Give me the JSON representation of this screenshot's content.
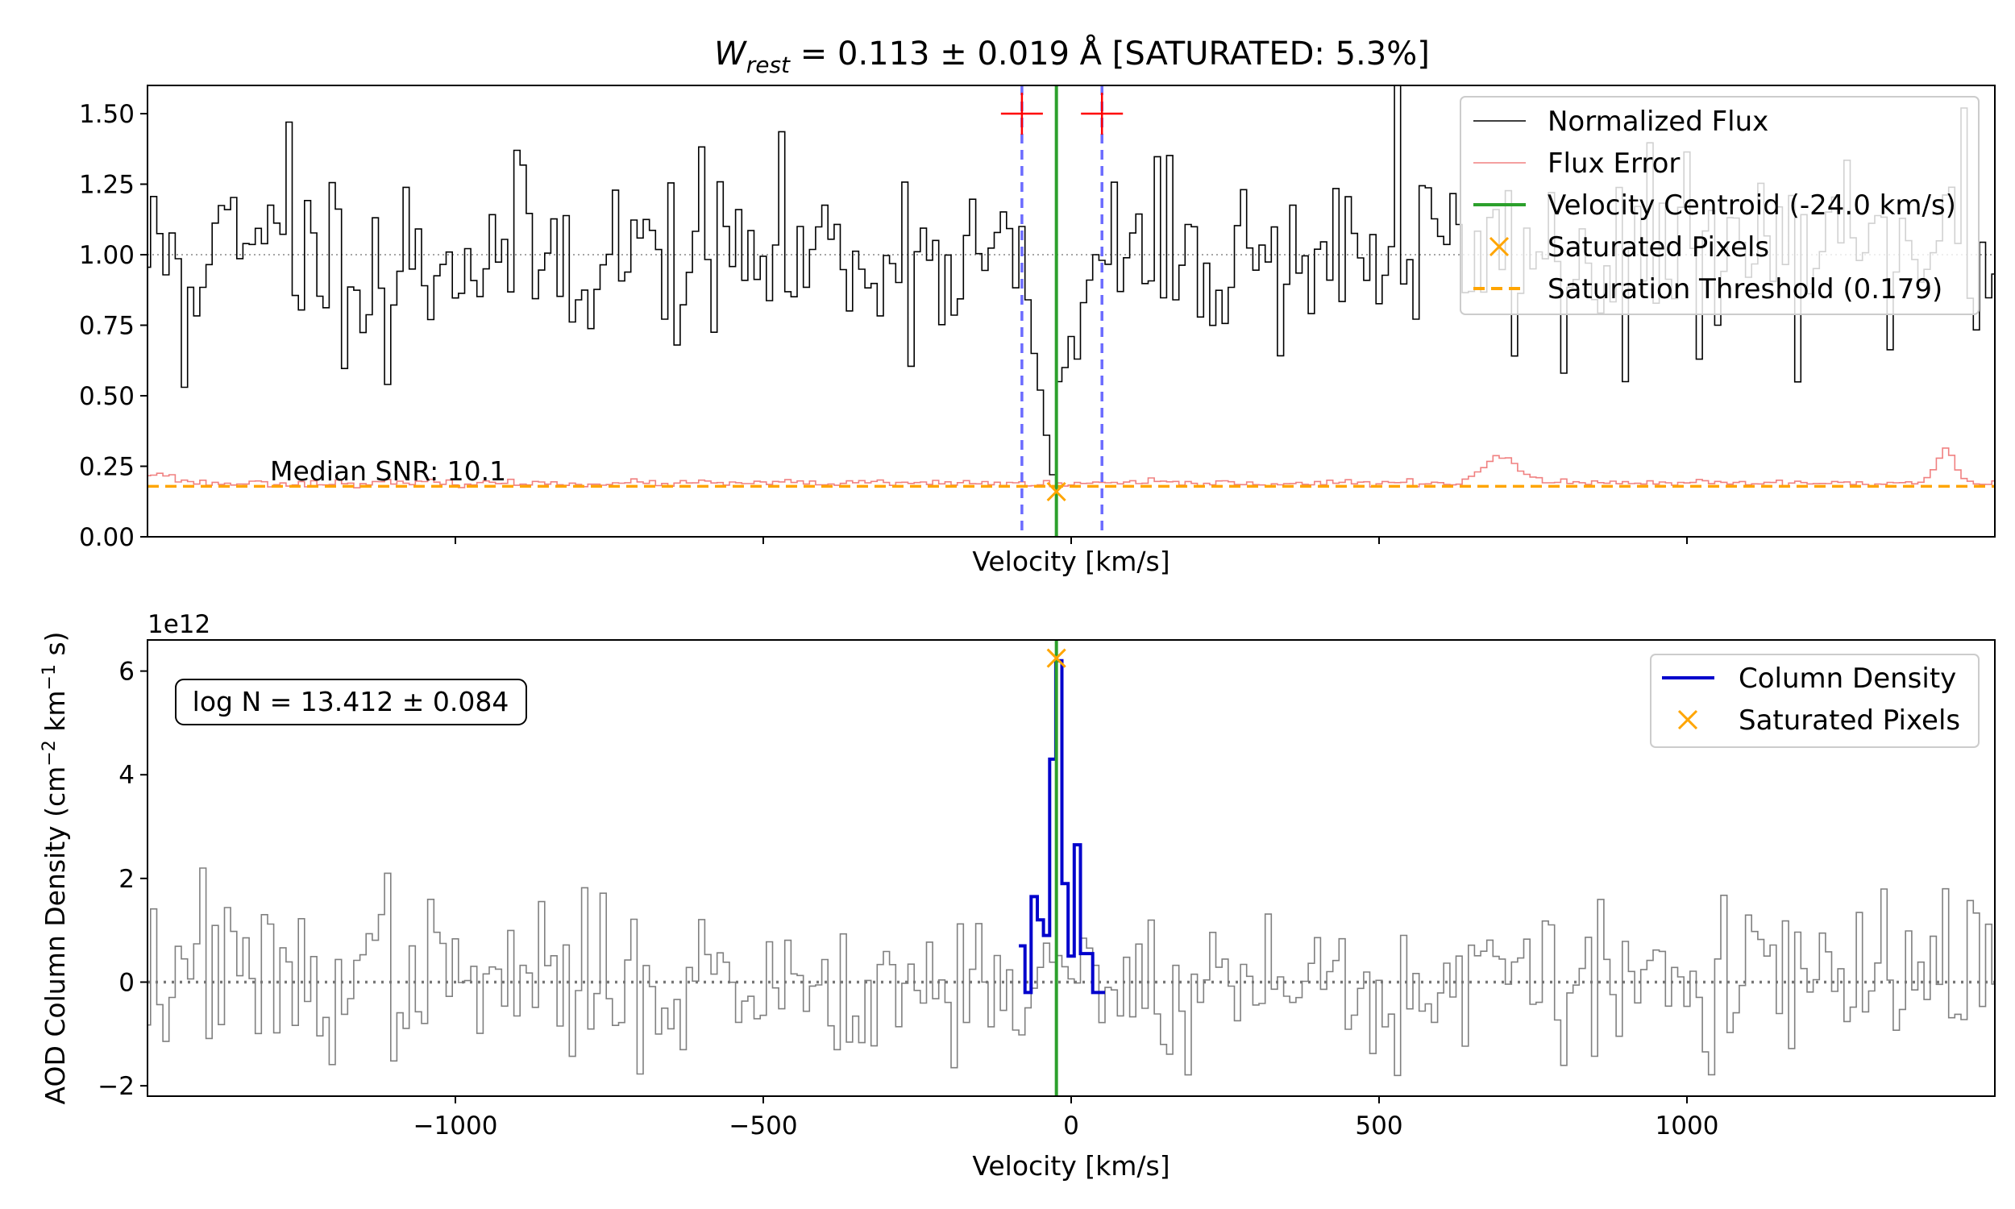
{
  "chart_data": [
    {
      "type": "line",
      "title": "W_rest = 0.113 ± 0.019 Å [SATURATED: 5.3%]",
      "title_parts": {
        "symbol": "W",
        "subscript": "rest",
        "rest": " = 0.113 ± 0.019 Å [SATURATED: 5.3%]"
      },
      "xlabel": "Velocity [km/s]",
      "ylabel": "",
      "xlim": [
        -1500,
        1500
      ],
      "ylim": [
        0,
        1.6
      ],
      "yticks": [
        0.0,
        0.25,
        0.5,
        0.75,
        1.0,
        1.25,
        1.5
      ],
      "ytick_labels": [
        "0.00",
        "0.25",
        "0.50",
        "0.75",
        "1.00",
        "1.25",
        "1.50"
      ],
      "xticks": [
        -1000,
        -500,
        0,
        500,
        1000
      ],
      "xtick_labels_visible": false,
      "continuum_level": 1.0,
      "zero_level": 0.0,
      "velocity_step": 10,
      "annotation": "Median SNR: 10.1",
      "annotation_position": {
        "x": -1300,
        "y": 0.21
      },
      "integration_limits": [
        -80,
        50
      ],
      "limit_markers_y": 1.5,
      "centroid": -24.0,
      "saturated_pixels": [
        {
          "x": -24,
          "y": 0.16
        }
      ],
      "saturation_threshold": 0.179,
      "legend_position": "upper right",
      "legend": [
        "Normalized Flux",
        "Flux Error",
        "Velocity Centroid (-24.0 km/s)",
        "Saturated Pixels",
        "Saturation Threshold (0.179)"
      ],
      "colors": {
        "flux": "#000000",
        "error": "#f08080",
        "centroid": "#2ca02c",
        "limits": "#6b6bff",
        "limit_markers": "#ff0000",
        "saturated": "#ffa500",
        "threshold": "#ffa500",
        "continuum": "#888888"
      },
      "series": [
        {
          "name": "Normalized Flux",
          "profile": "noise",
          "mean": 1.0,
          "sigma": 0.16,
          "seed": 11,
          "min": 0.5,
          "max": 1.6
        },
        {
          "name": "Flux Error",
          "profile": "noise",
          "mean": 0.19,
          "sigma": 0.006,
          "seed": 23,
          "bumps": [
            {
              "x": -1490,
              "width": 30,
              "amp": 0.035
            },
            {
              "x": 700,
              "width": 30,
              "amp": 0.09
            },
            {
              "x": 1420,
              "width": 15,
              "amp": 0.12
            },
            {
              "x": -20,
              "width": 20,
              "amp": -0.01
            }
          ]
        }
      ],
      "absorption_values": [
        {
          "x": -70,
          "y": 0.84
        },
        {
          "x": -60,
          "y": 0.65
        },
        {
          "x": -50,
          "y": 0.52
        },
        {
          "x": -40,
          "y": 0.36
        },
        {
          "x": -30,
          "y": 0.22
        },
        {
          "x": -20,
          "y": 0.55
        },
        {
          "x": -10,
          "y": 0.6
        },
        {
          "x": 0,
          "y": 0.71
        },
        {
          "x": 10,
          "y": 0.63
        },
        {
          "x": 20,
          "y": 0.83
        },
        {
          "x": 30,
          "y": 0.91
        },
        {
          "x": 40,
          "y": 1.0
        },
        {
          "x": 50,
          "y": 0.98
        }
      ],
      "spikes": [
        {
          "x": -1440,
          "y": 0.53
        },
        {
          "x": -1110,
          "y": 0.54
        },
        {
          "x": -1270,
          "y": 1.47
        },
        {
          "x": 530,
          "y": 1.63
        },
        {
          "x": 1450,
          "y": 1.52
        },
        {
          "x": 900,
          "y": 0.55
        },
        {
          "x": 800,
          "y": 0.58
        }
      ]
    },
    {
      "type": "line",
      "title": "",
      "xlabel": "Velocity [km/s]",
      "ylabel": "AOD Column Density (cm⁻² km⁻¹ s)",
      "ylabel_parts": {
        "base": "AOD Column Density (cm",
        "exp1": "−2",
        "mid": " km",
        "exp2": "−1",
        "end": " s)"
      },
      "offset_text": "1e12",
      "xlim": [
        -1500,
        1500
      ],
      "ylim": [
        -2.2,
        6.6
      ],
      "yticks": [
        -2,
        0,
        2,
        4,
        6
      ],
      "ytick_labels": [
        "−2",
        "0",
        "2",
        "4",
        "6"
      ],
      "xticks": [
        -1000,
        -500,
        0,
        500,
        1000
      ],
      "xtick_labels": [
        "−1000",
        "−500",
        "0",
        "500",
        "1000"
      ],
      "zero_level": 0.0,
      "centroid": -24.0,
      "annotation": "log N = 13.412 ± 0.084",
      "saturated_pixels": [
        {
          "x": -24,
          "y": 6.25
        }
      ],
      "legend_position": "upper right",
      "legend": [
        "Column Density",
        "Saturated Pixels"
      ],
      "colors": {
        "background_profile": "#808080",
        "column_density": "#0000cc",
        "centroid": "#2ca02c",
        "saturated": "#ffa500",
        "zero": "#777777"
      },
      "series": [
        {
          "name": "Background",
          "profile": "noise",
          "mean": 0.0,
          "sigma": 0.75,
          "seed": 37,
          "min": -1.85,
          "max": 2.2
        },
        {
          "name": "Column Density",
          "values": [
            {
              "x": -80,
              "y": 0.7
            },
            {
              "x": -70,
              "y": -0.2
            },
            {
              "x": -60,
              "y": 1.65
            },
            {
              "x": -50,
              "y": 1.2
            },
            {
              "x": -40,
              "y": 0.9
            },
            {
              "x": -30,
              "y": 4.3
            },
            {
              "x": -20,
              "y": 6.2
            },
            {
              "x": -10,
              "y": 1.9
            },
            {
              "x": 0,
              "y": 0.5
            },
            {
              "x": 10,
              "y": 2.65
            },
            {
              "x": 20,
              "y": 0.55
            },
            {
              "x": 30,
              "y": 0.55
            },
            {
              "x": 40,
              "y": -0.2
            },
            {
              "x": 50,
              "y": -0.2
            }
          ]
        }
      ],
      "spikes": [
        {
          "x": -1410,
          "y": 2.2
        },
        {
          "x": -1110,
          "y": 2.1
        },
        {
          "x": 530,
          "y": -1.8
        },
        {
          "x": 1420,
          "y": 1.8
        }
      ]
    }
  ]
}
